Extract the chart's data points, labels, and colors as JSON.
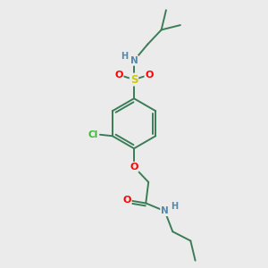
{
  "bg_color": "#ebebeb",
  "bond_color": "#3a7d56",
  "atom_colors": {
    "N": "#5588aa",
    "S": "#cccc00",
    "O": "#ff0000",
    "Cl": "#33bb33"
  },
  "figsize": [
    3.0,
    3.0
  ],
  "dpi": 100
}
